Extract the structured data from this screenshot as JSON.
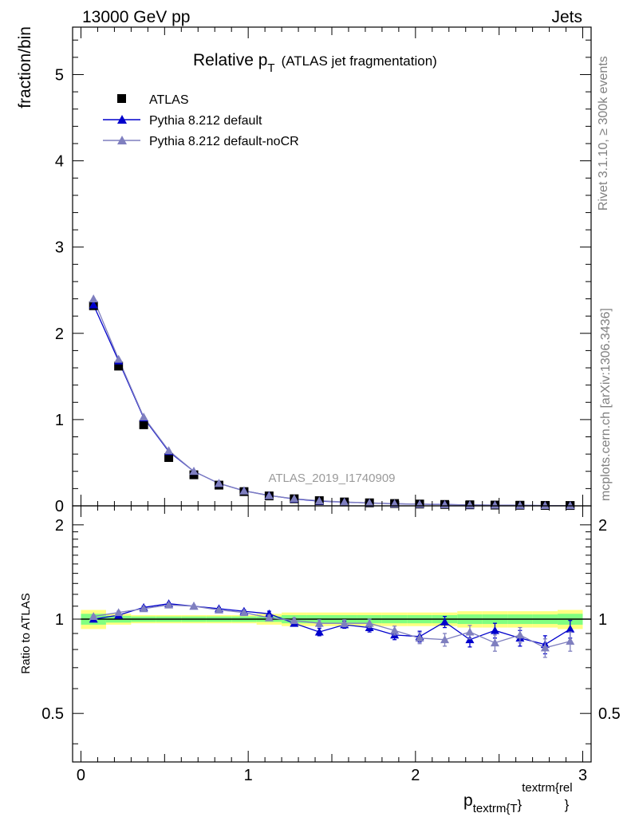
{
  "header": {
    "left": "13000 GeV pp",
    "right": "Jets"
  },
  "side": {
    "rivet": "Rivet 3.1.10, ≥ 300k events",
    "mcplots": "mcplots.cern.ch [arXiv:1306.3436]"
  },
  "colors": {
    "atlas": "#000000",
    "default": "#0000cc",
    "noCR": "#7f7fbf",
    "band_outer": "#ffff80",
    "band_inner": "#80ff80"
  },
  "chart_data": [
    {
      "type": "scatter",
      "title_main": "Relative p",
      "title_sub": "T",
      "title_rest": "(ATLAS jet fragmentation)",
      "analysis": "ATLAS_2019_I1740909",
      "ylabel": "fraction/bin",
      "xlim": [
        -0.05,
        3.05
      ],
      "ylim": [
        0,
        5.55
      ],
      "yticks": [
        0,
        1,
        2,
        3,
        4,
        5
      ],
      "legend": [
        "ATLAS",
        "Pythia 8.212 default",
        "Pythia 8.212 default-noCR"
      ],
      "x": [
        0.075,
        0.225,
        0.375,
        0.525,
        0.675,
        0.825,
        0.975,
        1.125,
        1.275,
        1.425,
        1.575,
        1.725,
        1.875,
        2.025,
        2.175,
        2.325,
        2.475,
        2.625,
        2.775,
        2.925
      ],
      "series": [
        {
          "name": "ATLAS",
          "values": [
            2.32,
            1.62,
            0.94,
            0.56,
            0.36,
            0.24,
            0.165,
            0.115,
            0.082,
            0.06,
            0.045,
            0.035,
            0.027,
            0.021,
            0.016,
            0.012,
            0.009,
            0.007,
            0.005,
            0.004
          ]
        },
        {
          "name": "Pythia 8.212 default",
          "values": [
            2.33,
            1.68,
            1.02,
            0.63,
            0.4,
            0.26,
            0.175,
            0.12,
            0.08,
            0.055,
            0.043,
            0.033,
            0.024,
            0.019,
            0.016,
            0.01,
            0.008,
            0.006,
            0.004,
            0.004
          ]
        },
        {
          "name": "Pythia 8.212 default-noCR",
          "values": [
            2.4,
            1.7,
            1.03,
            0.64,
            0.4,
            0.26,
            0.173,
            0.118,
            0.083,
            0.058,
            0.044,
            0.034,
            0.025,
            0.019,
            0.014,
            0.011,
            0.008,
            0.006,
            0.004,
            0.003
          ]
        }
      ]
    },
    {
      "type": "scatter",
      "ylabel": "Ratio to ATLAS",
      "xlabel_main": "p",
      "xlabel_sub": "textrm{T",
      "xlabel_brace": "}",
      "xlabel_sup": "textrm{rel",
      "xlabel_end": "}",
      "xlim": [
        -0.05,
        3.05
      ],
      "ylim": [
        0.35,
        2.3
      ],
      "yticks": [
        0.5,
        1,
        2
      ],
      "xticks": [
        0,
        1,
        2,
        3
      ],
      "reference": 1,
      "x": [
        0.075,
        0.225,
        0.375,
        0.525,
        0.675,
        0.825,
        0.975,
        1.125,
        1.275,
        1.425,
        1.575,
        1.725,
        1.875,
        2.025,
        2.175,
        2.325,
        2.475,
        2.625,
        2.775,
        2.925
      ],
      "band": {
        "edges": [
          0.0,
          0.15,
          0.3,
          0.45,
          0.6,
          0.75,
          0.9,
          1.05,
          1.2,
          1.35,
          1.5,
          1.65,
          1.8,
          1.95,
          2.1,
          2.25,
          2.4,
          2.55,
          2.7,
          2.85,
          3.0
        ],
        "inner": [
          0.04,
          0.025,
          0.02,
          0.02,
          0.02,
          0.02,
          0.02,
          0.02,
          0.03,
          0.03,
          0.03,
          0.03,
          0.03,
          0.03,
          0.03,
          0.035,
          0.035,
          0.035,
          0.035,
          0.04
        ],
        "outer": [
          0.07,
          0.04,
          0.03,
          0.03,
          0.03,
          0.03,
          0.03,
          0.04,
          0.05,
          0.05,
          0.05,
          0.05,
          0.05,
          0.05,
          0.05,
          0.06,
          0.06,
          0.06,
          0.06,
          0.07
        ]
      },
      "series": [
        {
          "name": "Pythia 8.212 default",
          "values": [
            1.0,
            1.03,
            1.09,
            1.12,
            1.1,
            1.08,
            1.06,
            1.04,
            0.97,
            0.91,
            0.96,
            0.94,
            0.89,
            0.88,
            0.98,
            0.86,
            0.92,
            0.87,
            0.83,
            0.93
          ],
          "errors": [
            0.01,
            0.01,
            0.01,
            0.01,
            0.01,
            0.01,
            0.01,
            0.02,
            0.02,
            0.025,
            0.025,
            0.03,
            0.03,
            0.035,
            0.04,
            0.045,
            0.05,
            0.05,
            0.055,
            0.06
          ]
        },
        {
          "name": "Pythia 8.212 default-noCR",
          "values": [
            1.02,
            1.05,
            1.08,
            1.11,
            1.1,
            1.07,
            1.05,
            1.01,
            0.99,
            0.97,
            0.97,
            0.97,
            0.92,
            0.87,
            0.86,
            0.91,
            0.84,
            0.89,
            0.81,
            0.85
          ],
          "errors": [
            0.01,
            0.01,
            0.01,
            0.01,
            0.01,
            0.01,
            0.01,
            0.02,
            0.02,
            0.025,
            0.025,
            0.03,
            0.03,
            0.035,
            0.04,
            0.045,
            0.05,
            0.05,
            0.055,
            0.06
          ]
        }
      ]
    }
  ]
}
